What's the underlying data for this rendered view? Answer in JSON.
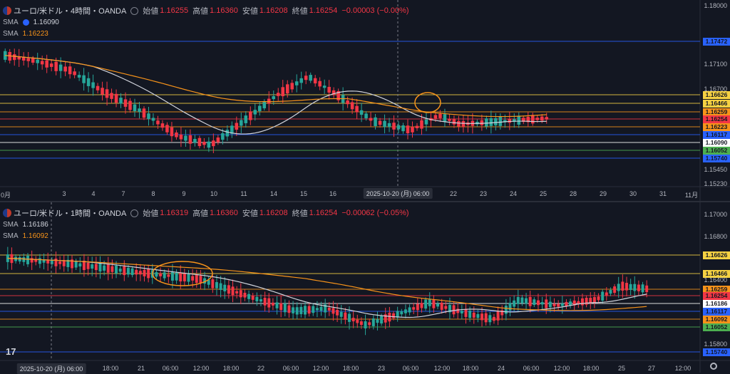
{
  "top": {
    "title": "ユーロ/米ドル・4時間・OANDA",
    "open_label": "始値",
    "open": "1.16255",
    "high_label": "高値",
    "high": "1.16360",
    "low_label": "安値",
    "low": "1.16208",
    "close_label": "終値",
    "close": "1.16254",
    "change": "−0.00003 (−0.00%)",
    "sma1_label": "SMA",
    "sma1_value": "1.16090",
    "sma2_label": "SMA",
    "sma2_value": "1.16223",
    "axis_ticks": [
      "1.18000",
      "1.17100",
      "1.16700",
      "1.15450",
      "1.15230"
    ],
    "price_tags": [
      {
        "text": "1.17472",
        "color": "#2962ff"
      },
      {
        "text": "1.16626",
        "color": "#f5d142"
      },
      {
        "text": "1.16466",
        "color": "#f5d142"
      },
      {
        "text": "1.16259",
        "color": "#f7931a"
      },
      {
        "text": "1.16254",
        "color": "#f23645"
      },
      {
        "text": "1.16223",
        "color": "#f7931a"
      },
      {
        "text": "1.16117",
        "color": "#2962ff"
      },
      {
        "text": "1.16090",
        "color": "#ffffff"
      },
      {
        "text": "1.16052",
        "color": "#4caf50"
      },
      {
        "text": "1.15740",
        "color": "#2962ff"
      }
    ],
    "time_labels": [
      "0月",
      "3",
      "4",
      "7",
      "8",
      "9",
      "10",
      "11",
      "14",
      "15",
      "16",
      "22",
      "23",
      "24",
      "25",
      "28",
      "29",
      "30",
      "31",
      "11月"
    ],
    "crosshair_label": "2025-10-20 (月)   06:00"
  },
  "bottom": {
    "title": "ユーロ/米ドル・1時間・OANDA",
    "open_label": "始値",
    "open": "1.16319",
    "high_label": "高値",
    "high": "1.16360",
    "low_label": "安値",
    "low": "1.16208",
    "close_label": "終値",
    "close": "1.16254",
    "change": "−0.00062 (−0.05%)",
    "sma1_label": "SMA",
    "sma1_value": "1.16186",
    "sma2_label": "SMA",
    "sma2_value": "1.16092",
    "axis_ticks": [
      "1.17000",
      "1.16800",
      "1.16400",
      "1.15800"
    ],
    "price_tags": [
      {
        "text": "1.16626",
        "color": "#f5d142"
      },
      {
        "text": "1.16466",
        "color": "#f5d142"
      },
      {
        "text": "1.16259",
        "color": "#f7931a"
      },
      {
        "text": "1.16254",
        "color": "#f23645"
      },
      {
        "text": "1.16186",
        "color": "#ffffff"
      },
      {
        "text": "1.16117",
        "color": "#2962ff"
      },
      {
        "text": "1.16092",
        "color": "#f7931a"
      },
      {
        "text": "1.16052",
        "color": "#4caf50"
      },
      {
        "text": "1.15740",
        "color": "#2962ff"
      }
    ],
    "time_labels": [
      "18:00",
      "21",
      "06:00",
      "12:00",
      "18:00",
      "22",
      "06:00",
      "12:00",
      "18:00",
      "23",
      "06:00",
      "12:00",
      "18:00",
      "24",
      "06:00",
      "12:00",
      "18:00",
      "25",
      "27",
      "12:00"
    ],
    "crosshair_label": "2025-10-20 (月)   06:00"
  },
  "colors": {
    "up": "#26a69a",
    "down": "#f23645",
    "sma_fast": "#d1d4dc",
    "sma_slow": "#f7931a",
    "yellow": "#f5d142",
    "blue": "#2962ff",
    "green": "#4caf50",
    "circle": "#f7931a"
  }
}
